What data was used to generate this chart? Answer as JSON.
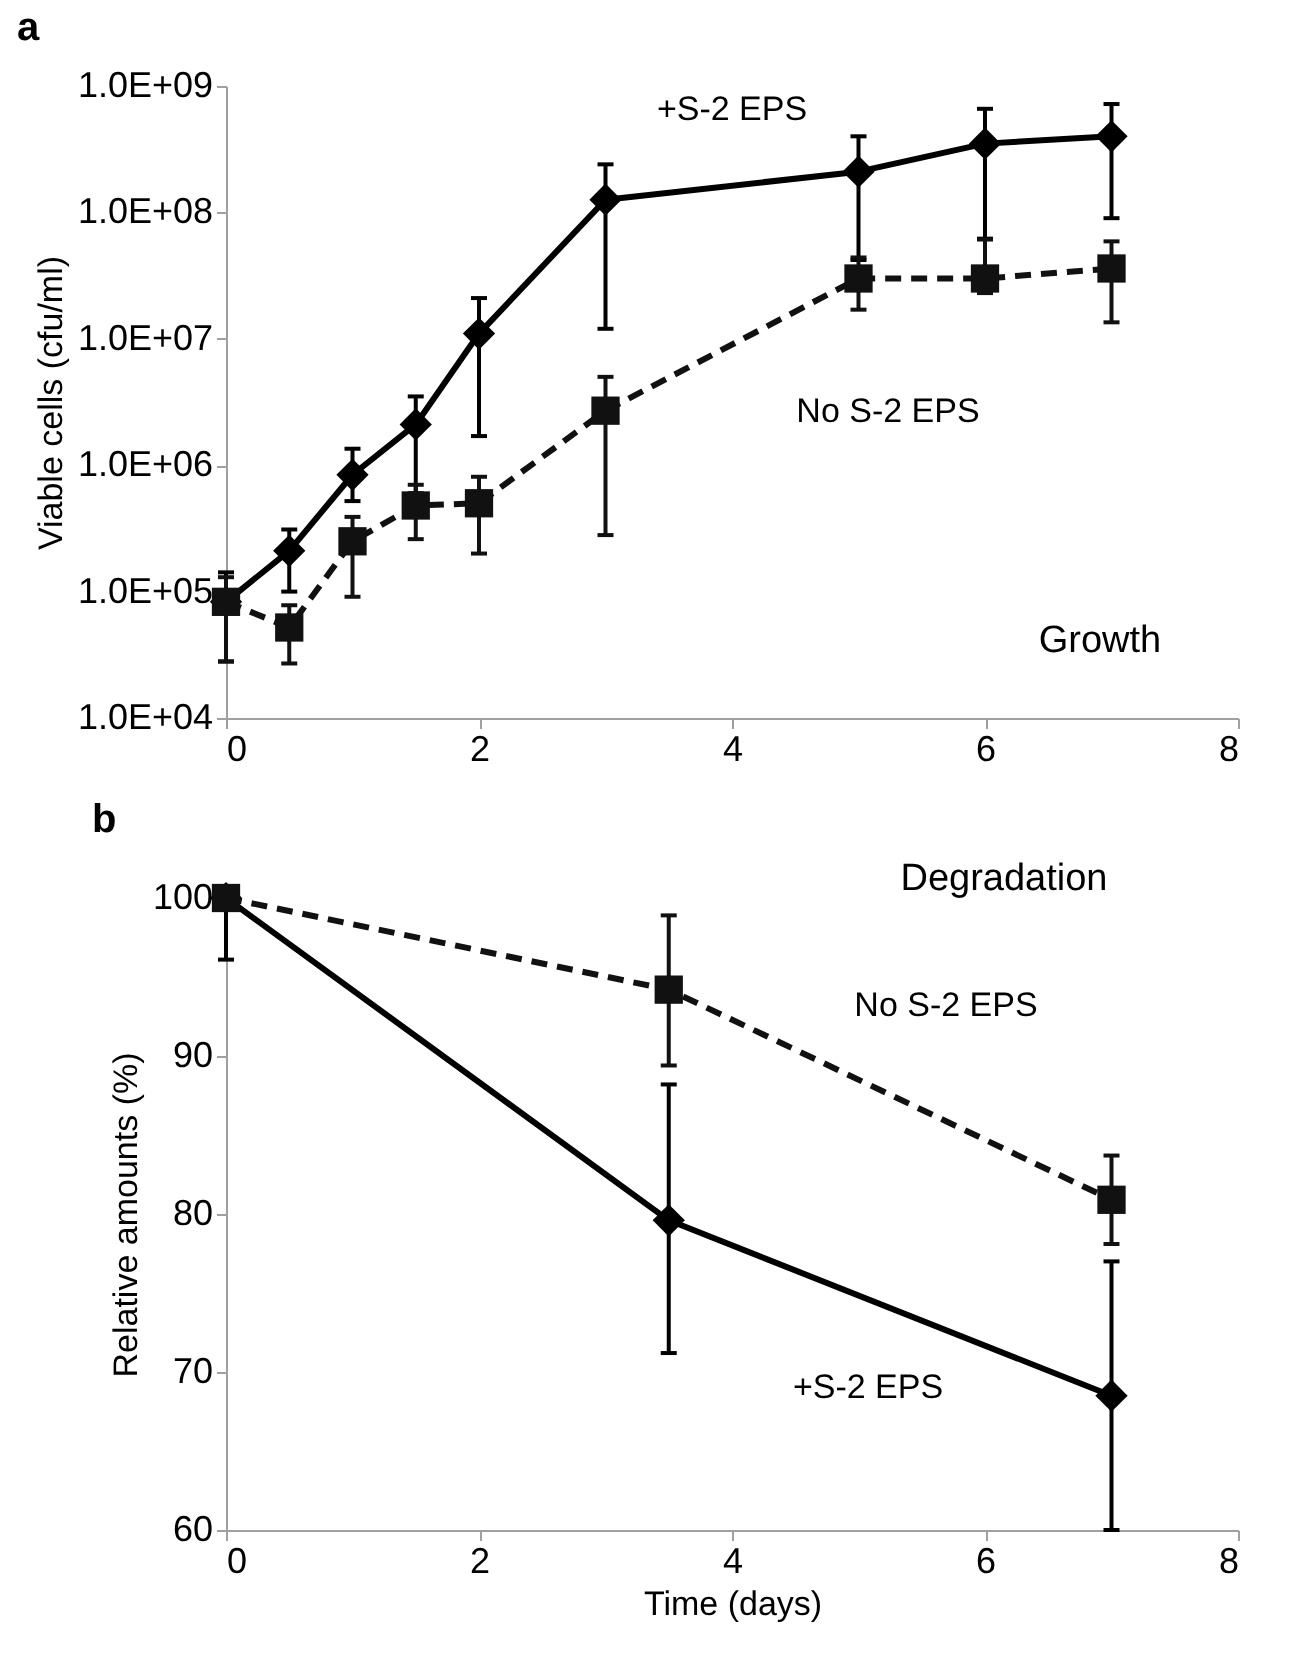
{
  "chart_data": [
    {
      "type": "line",
      "title": "a",
      "ylabel": "Viable cells (cfu/ml)",
      "log": true,
      "annotations": [
        "Growth"
      ],
      "x": [
        0,
        0.5,
        1,
        1.5,
        2,
        3,
        5,
        6,
        7
      ],
      "xlim": [
        0,
        8
      ],
      "xticks": [
        0,
        2,
        4,
        6,
        8
      ],
      "ylim": [
        10000,
        1000000000
      ],
      "yticks": [
        {
          "value": 10000,
          "label": "1.0E+04"
        },
        {
          "value": 100000,
          "label": "1.0E+05"
        },
        {
          "value": 1000000,
          "label": "1.0E+06"
        },
        {
          "value": 10000000,
          "label": "1.0E+07"
        },
        {
          "value": 100000000,
          "label": "1.0E+08"
        },
        {
          "value": 1000000000,
          "label": "1.0E+09"
        }
      ],
      "series": [
        {
          "name": "+S-2 EPS",
          "color": "#000000",
          "marker": "diamond",
          "line_style": "solid",
          "values": [
            83000,
            210000,
            840000,
            2100000,
            11000000,
            126000000,
            210000000,
            350000000,
            400000000
          ],
          "errors": [
            [
              28000,
              142000
            ],
            [
              100000,
              310000
            ],
            [
              520000,
              1350000
            ],
            [
              600000,
              3500000
            ],
            [
              1700000,
              21000000
            ],
            [
              12000000,
              240000000
            ],
            [
              42000000,
              400000000
            ],
            [
              62000000,
              660000000
            ],
            [
              90000000,
              720000000
            ]
          ]
        },
        {
          "name": "No S-2 EPS",
          "color": "#111111",
          "marker": "square",
          "line_style": "dashed",
          "values": [
            83000,
            52000,
            250000,
            480000,
            500000,
            2700000,
            30000000,
            30000000,
            36000000
          ],
          "errors": [
            [
              28000,
              130000
            ],
            [
              27000,
              78000
            ],
            [
              91000,
              390000
            ],
            [
              260000,
              700000
            ],
            [
              200000,
              810000
            ],
            [
              280000,
              5000000
            ],
            [
              17000000,
              44000000
            ],
            [
              23000000,
              61000000
            ],
            [
              13500000,
              59000000
            ]
          ]
        }
      ]
    },
    {
      "type": "line",
      "title": "b",
      "xlabel": "Time (days)",
      "ylabel": "Relative amounts (%)",
      "annotations": [
        "Degradation"
      ],
      "x": [
        0,
        3.5,
        7
      ],
      "xlim": [
        0,
        8
      ],
      "xticks": [
        0,
        2,
        4,
        6,
        8
      ],
      "ylim": [
        60,
        100
      ],
      "yticks": [
        60,
        70,
        80,
        90,
        100
      ],
      "series": [
        {
          "name": "+S-2 EPS",
          "color": "#000000",
          "marker": "diamond",
          "line_style": "solid",
          "values": [
            100,
            79.6,
            68.5
          ],
          "errors": [
            [
              96.1,
              100
            ],
            [
              71.2,
              88.2
            ],
            [
              60,
              77
            ]
          ]
        },
        {
          "name": "No S-2 EPS",
          "color": "#111111",
          "marker": "square",
          "line_style": "dashed",
          "values": [
            100,
            94.2,
            80.9
          ],
          "errors": [
            null,
            [
              89.4,
              98.9
            ],
            [
              78.1,
              83.7
            ]
          ]
        }
      ]
    }
  ]
}
